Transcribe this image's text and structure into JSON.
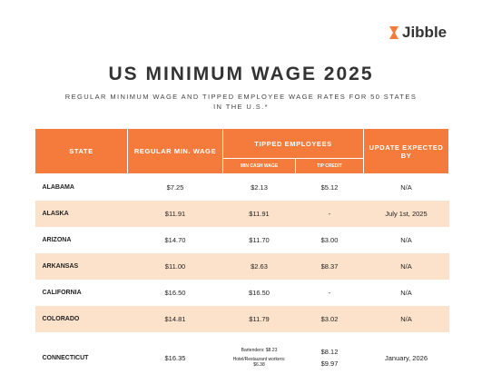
{
  "logo": "Jibble",
  "header": {
    "title": "US MINIMUM WAGE 2025",
    "subtitle_lines": [
      "REGULAR MINIMUM WAGE AND TIPPED EMPLOYEE WAGE RATES FOR 50 STATES",
      "IN THE U.S.*"
    ]
  },
  "table": {
    "columns": {
      "state": "STATE",
      "regular_min_wage": "REGULAR MIN. WAGE",
      "tipped_employees": "TIPPED EMPLOYEES",
      "min_cash_wage": "MIN CASH WAGE",
      "tip_credit": "TIP CREDIT",
      "update_expected_by": "UPDATE EXPECTED BY"
    },
    "rows": [
      {
        "state": "ALABAMA",
        "regular_min_wage": "$7.25",
        "min_cash_wage": "$2.13",
        "tip_credit": "$5.12",
        "update_expected_by": "N/A"
      },
      {
        "state": "ALASKA",
        "regular_min_wage": "$11.91",
        "min_cash_wage": "$11.91",
        "tip_credit": "-",
        "update_expected_by": "July 1st, 2025"
      },
      {
        "state": "ARIZONA",
        "regular_min_wage": "$14.70",
        "min_cash_wage": "$11.70",
        "tip_credit": "$3.00",
        "update_expected_by": "N/A"
      },
      {
        "state": "ARKANSAS",
        "regular_min_wage": "$11.00",
        "min_cash_wage": "$2.63",
        "tip_credit": "$8.37",
        "update_expected_by": "N/A"
      },
      {
        "state": "CALIFORNIA",
        "regular_min_wage": "$16.50",
        "min_cash_wage": "$16.50",
        "tip_credit": "-",
        "update_expected_by": "N/A"
      },
      {
        "state": "COLORADO",
        "regular_min_wage": "$14.81",
        "min_cash_wage": "$11.79",
        "tip_credit": "$3.02",
        "update_expected_by": "N/A"
      },
      {
        "state": "CONNECTICUT",
        "regular_min_wage": "$16.35",
        "min_cash_wage": [
          "Bartenders: $8.23",
          "Hotel/Restaurant workers: $6.38"
        ],
        "tip_credit": [
          "$8.12",
          "$9.97"
        ],
        "update_expected_by": "January, 2026"
      }
    ]
  }
}
